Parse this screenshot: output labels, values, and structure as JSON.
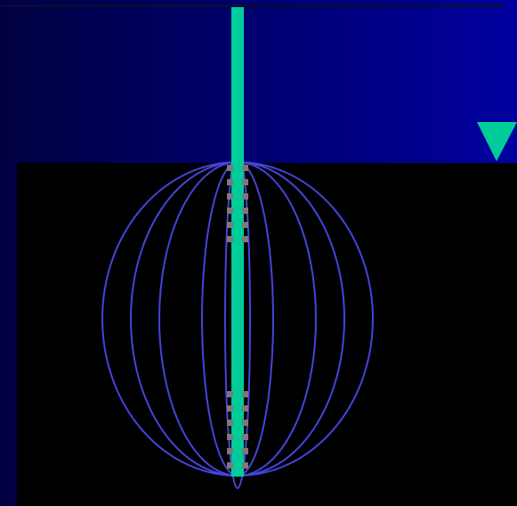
{
  "colors": {
    "background_gradient_left": "#000040",
    "background_gradient_right": "#0000a0",
    "dark_panel": "#000000",
    "top_line": "#0a0a3a",
    "shaft": "#00cc99",
    "marker_triangle": "#00cc99",
    "sphere_outline": "#4444dd",
    "tick_marks": "#7a7a7a"
  },
  "icons": {
    "marker": "down-triangle-icon"
  }
}
